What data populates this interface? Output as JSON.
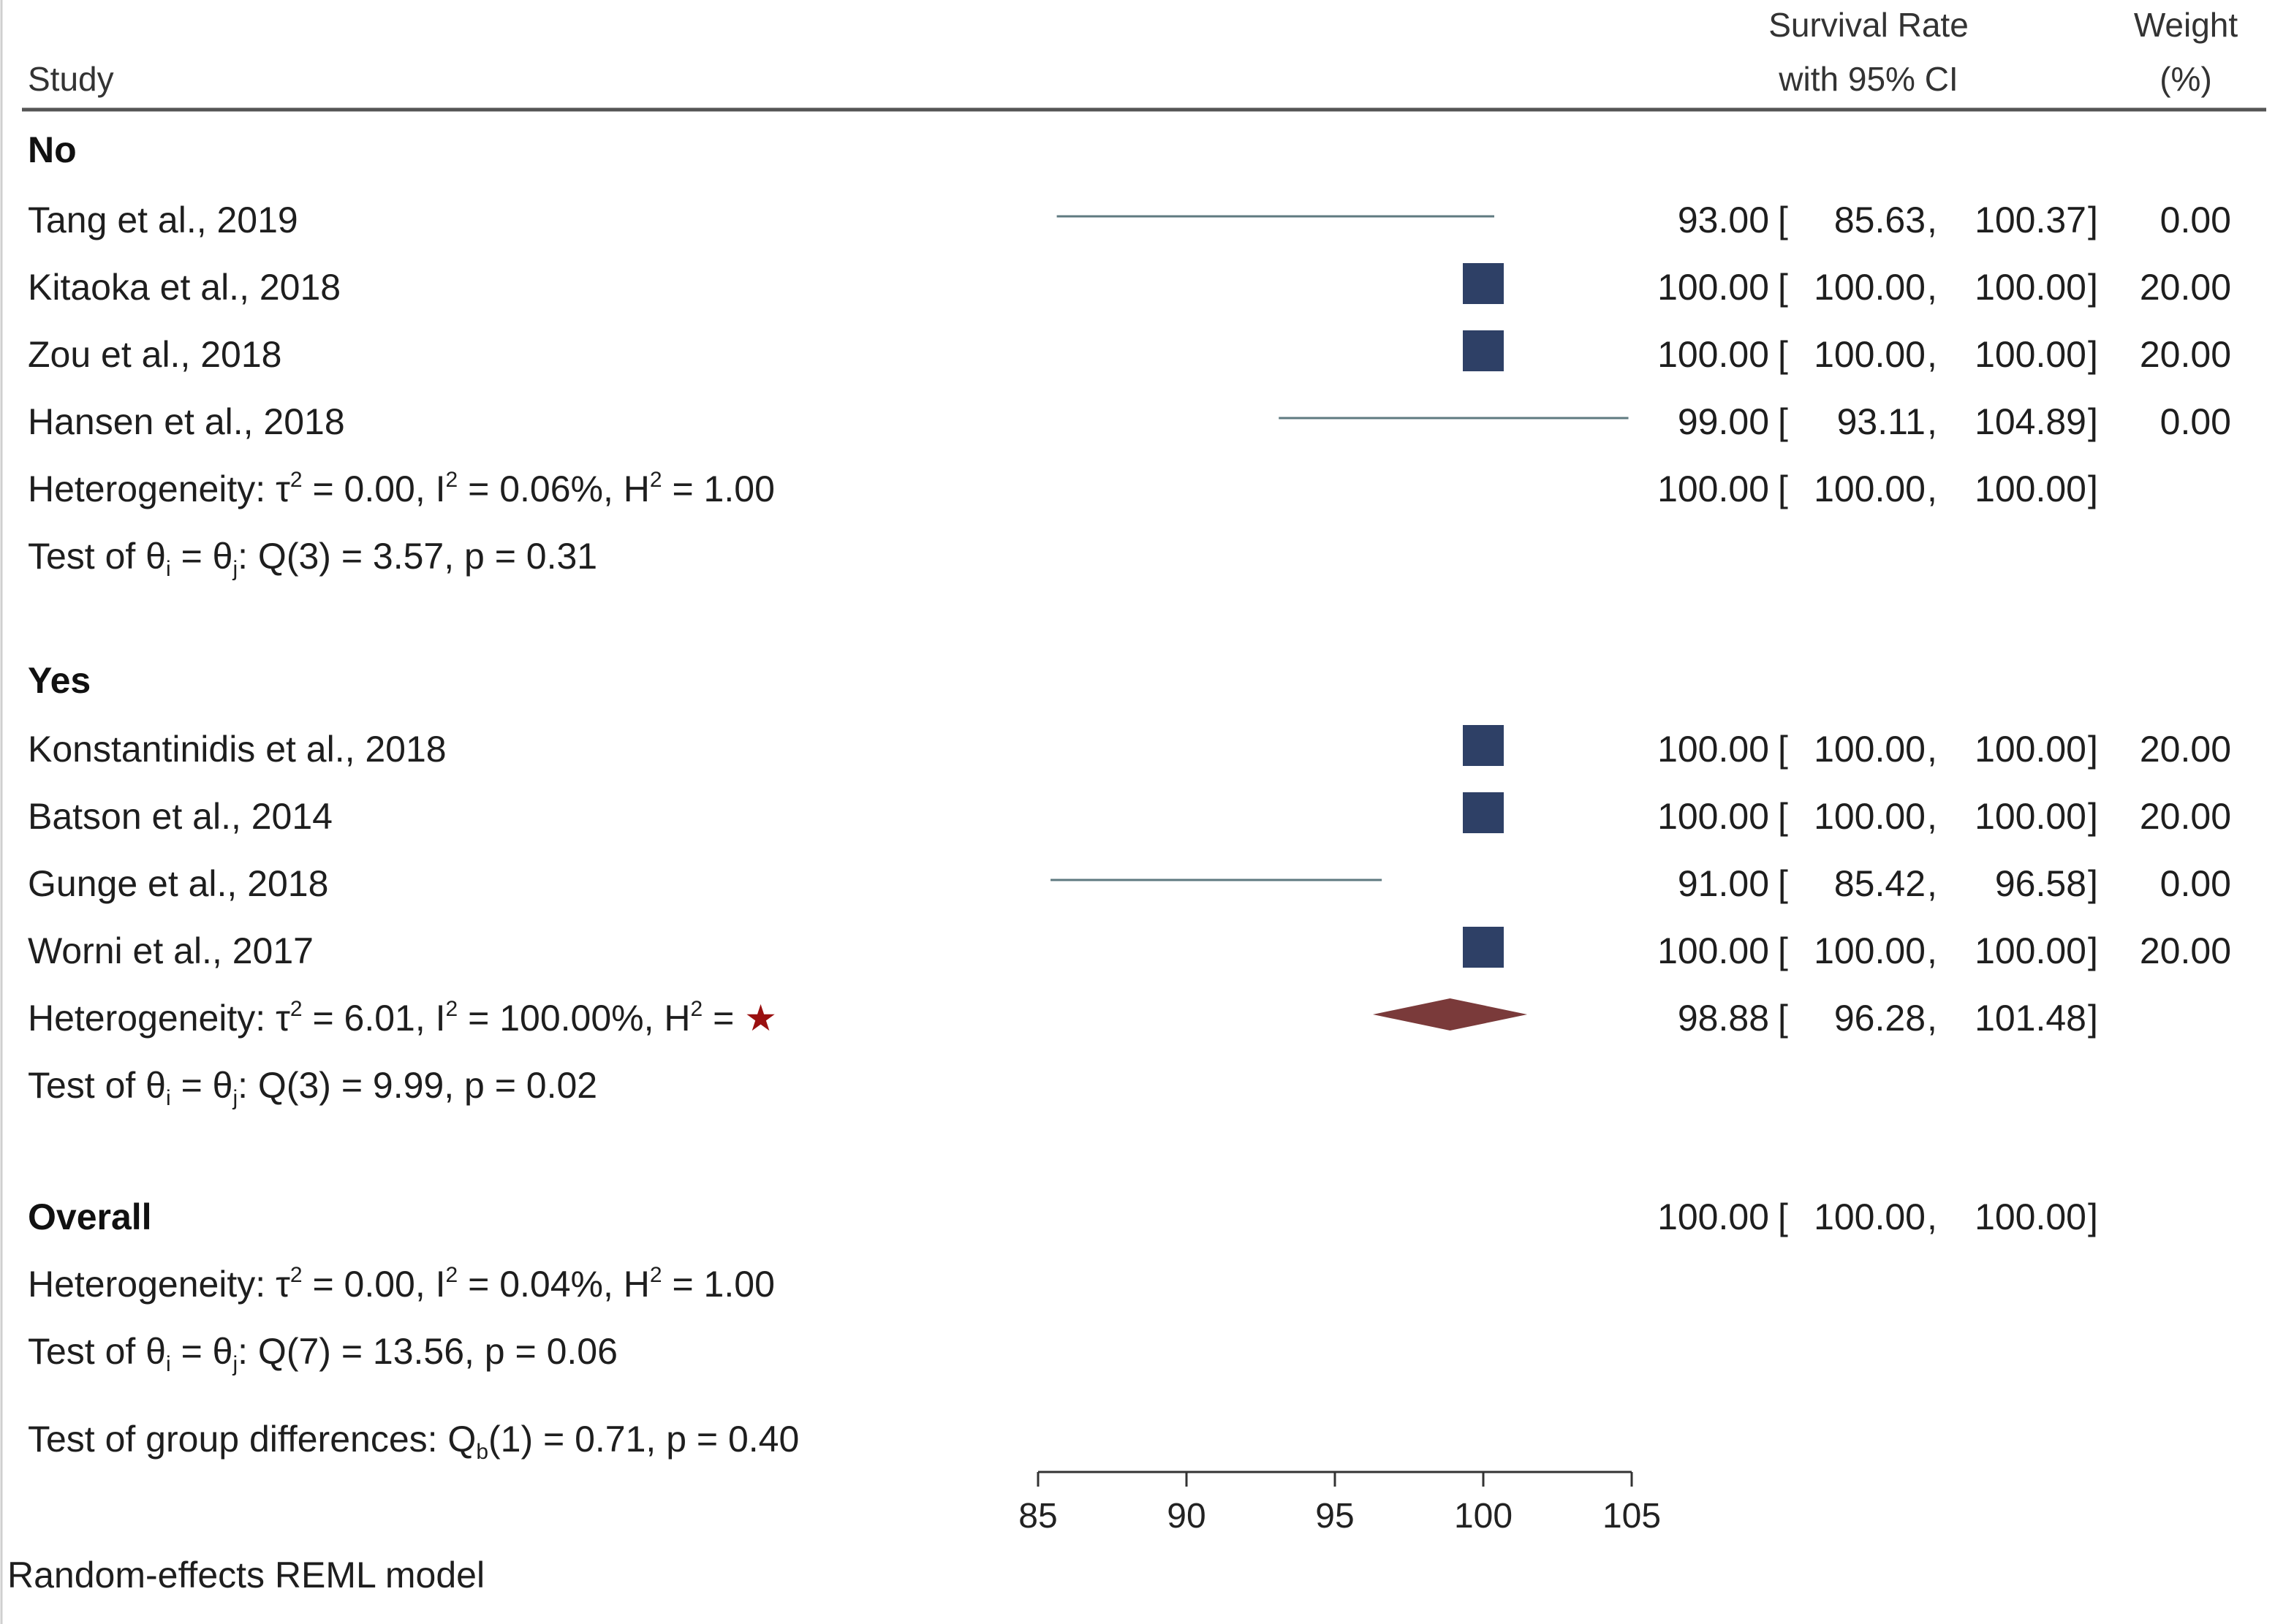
{
  "header": {
    "study": "Study",
    "rate_line1": "Survival Rate",
    "rate_line2": "with 95% CI",
    "weight_line1": "Weight",
    "weight_line2": "(%)"
  },
  "groups": [
    {
      "label": "No",
      "studies": [
        {
          "name": "Tang et al., 2019",
          "est": 93.0,
          "lo": 85.63,
          "hi": 100.37,
          "est_txt": "93.00",
          "lo_txt": "85.63",
          "hi_txt": "100.37",
          "weight": "0.00",
          "marker": "line"
        },
        {
          "name": "Kitaoka et al., 2018",
          "est": 100.0,
          "lo": 100.0,
          "hi": 100.0,
          "est_txt": "100.00",
          "lo_txt": "100.00",
          "hi_txt": "100.00",
          "weight": "20.00",
          "marker": "square"
        },
        {
          "name": "Zou et al., 2018",
          "est": 100.0,
          "lo": 100.0,
          "hi": 100.0,
          "est_txt": "100.00",
          "lo_txt": "100.00",
          "hi_txt": "100.00",
          "weight": "20.00",
          "marker": "square"
        },
        {
          "name": "Hansen et al., 2018",
          "est": 99.0,
          "lo": 93.11,
          "hi": 104.89,
          "est_txt": "99.00",
          "lo_txt": "93.11",
          "hi_txt": "104.89",
          "weight": "0.00",
          "marker": "line"
        }
      ],
      "heterogeneity": {
        "prefix": "Heterogeneity: ",
        "tau": "τ",
        "tau_val": " = 0.00, ",
        "i": "I",
        "i_val": " = 0.06%, ",
        "h": "H",
        "h_val": " = 1.00",
        "h_star": ""
      },
      "test": {
        "prefix": "Test of θ",
        "mid": " = θ",
        "rest": ": Q(3) = 3.57, p = 0.31",
        "sub_i": "i",
        "sub_j": "j"
      },
      "summary": {
        "est": 100.0,
        "lo": 100.0,
        "hi": 100.0,
        "est_txt": "100.00",
        "lo_txt": "100.00",
        "hi_txt": "100.00",
        "diamond": false
      }
    },
    {
      "label": "Yes",
      "studies": [
        {
          "name": "Konstantinidis et al., 2018",
          "est": 100.0,
          "lo": 100.0,
          "hi": 100.0,
          "est_txt": "100.00",
          "lo_txt": "100.00",
          "hi_txt": "100.00",
          "weight": "20.00",
          "marker": "square"
        },
        {
          "name": "Batson et al., 2014",
          "est": 100.0,
          "lo": 100.0,
          "hi": 100.0,
          "est_txt": "100.00",
          "lo_txt": "100.00",
          "hi_txt": "100.00",
          "weight": "20.00",
          "marker": "square"
        },
        {
          "name": "Gunge et al., 2018",
          "est": 91.0,
          "lo": 85.42,
          "hi": 96.58,
          "est_txt": "91.00",
          "lo_txt": "85.42",
          "hi_txt": "96.58",
          "weight": "0.00",
          "marker": "line"
        },
        {
          "name": "Worni et al., 2017",
          "est": 100.0,
          "lo": 100.0,
          "hi": 100.0,
          "est_txt": "100.00",
          "lo_txt": "100.00",
          "hi_txt": "100.00",
          "weight": "20.00",
          "marker": "square"
        }
      ],
      "heterogeneity": {
        "prefix": "Heterogeneity: ",
        "tau": "τ",
        "tau_val": " = 6.01, ",
        "i": "I",
        "i_val": " = 100.00%, ",
        "h": "H",
        "h_val": " = ",
        "h_star": "★"
      },
      "test": {
        "prefix": "Test of θ",
        "mid": " = θ",
        "rest": ": Q(3) = 9.99, p = 0.02",
        "sub_i": "i",
        "sub_j": "j"
      },
      "summary": {
        "est": 98.88,
        "lo": 96.28,
        "hi": 101.48,
        "est_txt": "98.88",
        "lo_txt": "96.28",
        "hi_txt": "101.48",
        "diamond": true
      }
    }
  ],
  "overall": {
    "label": "Overall",
    "summary": {
      "est_txt": "100.00",
      "lo_txt": "100.00",
      "hi_txt": "100.00"
    },
    "heterogeneity": {
      "prefix": "Heterogeneity: ",
      "tau": "τ",
      "tau_val": " = 0.00, ",
      "i": "I",
      "i_val": " = 0.04%, ",
      "h": "H",
      "h_val": " = 1.00",
      "h_star": ""
    },
    "test": {
      "prefix": "Test of θ",
      "mid": " = θ",
      "rest": ": Q(7) = 13.56, p = 0.06",
      "sub_i": "i",
      "sub_j": "j"
    },
    "group_diff": {
      "prefix": "Test of group differences: Q",
      "sub": "b",
      "rest": "(1) = 0.71, p = 0.40"
    }
  },
  "footer": "Random-effects REML model",
  "colors": {
    "square": "#2e4066",
    "diamond": "#7a3a3a",
    "ci_line": "#5f7a80",
    "star": "#9a1010",
    "rule": "#555555"
  },
  "chart_data": {
    "type": "forest",
    "title": "",
    "xlabel": "Survival Rate with 95% CI",
    "xlim": [
      85,
      105
    ],
    "xticks": [
      85,
      90,
      95,
      100,
      105
    ],
    "series": [
      {
        "name": "Tang et al., 2019",
        "group": "No",
        "value": 93.0,
        "ci": [
          85.63,
          100.37
        ],
        "weight": 0.0
      },
      {
        "name": "Kitaoka et al., 2018",
        "group": "No",
        "value": 100.0,
        "ci": [
          100.0,
          100.0
        ],
        "weight": 20.0
      },
      {
        "name": "Zou et al., 2018",
        "group": "No",
        "value": 100.0,
        "ci": [
          100.0,
          100.0
        ],
        "weight": 20.0
      },
      {
        "name": "Hansen et al., 2018",
        "group": "No",
        "value": 99.0,
        "ci": [
          93.11,
          104.89
        ],
        "weight": 0.0
      },
      {
        "name": "No subtotal",
        "group": "No",
        "value": 100.0,
        "ci": [
          100.0,
          100.0
        ]
      },
      {
        "name": "Konstantinidis et al., 2018",
        "group": "Yes",
        "value": 100.0,
        "ci": [
          100.0,
          100.0
        ],
        "weight": 20.0
      },
      {
        "name": "Batson et al., 2014",
        "group": "Yes",
        "value": 100.0,
        "ci": [
          100.0,
          100.0
        ],
        "weight": 20.0
      },
      {
        "name": "Gunge et al., 2018",
        "group": "Yes",
        "value": 91.0,
        "ci": [
          85.42,
          96.58
        ],
        "weight": 0.0
      },
      {
        "name": "Worni et al., 2017",
        "group": "Yes",
        "value": 100.0,
        "ci": [
          100.0,
          100.0
        ],
        "weight": 20.0
      },
      {
        "name": "Yes subtotal",
        "group": "Yes",
        "value": 98.88,
        "ci": [
          96.28,
          101.48
        ]
      },
      {
        "name": "Overall",
        "group": "Overall",
        "value": 100.0,
        "ci": [
          100.0,
          100.0
        ]
      }
    ]
  }
}
